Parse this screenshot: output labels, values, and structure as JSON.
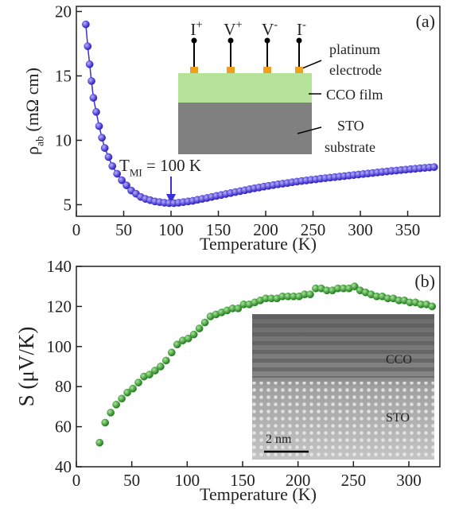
{
  "chart_data": [
    {
      "type": "line",
      "panel_label": "(a)",
      "x_label": "Temperature (K)",
      "y_label": {
        "text": "ρ",
        "sub": "ab",
        "tail": " (mΩ cm)"
      },
      "annotation": {
        "text": "T",
        "sub": "MI",
        "tail": " = 100 K"
      },
      "color": "#3b2fd6",
      "x": [
        10,
        12,
        14,
        16,
        18,
        21,
        24,
        27,
        30,
        34,
        38,
        43,
        48,
        53,
        58,
        63,
        68,
        73,
        78,
        83,
        88,
        93,
        98,
        103,
        108,
        113,
        118,
        123,
        128,
        133,
        138,
        143,
        148,
        153,
        158,
        163,
        168,
        173,
        178,
        183,
        188,
        193,
        198,
        203,
        208,
        213,
        218,
        223,
        228,
        233,
        238,
        243,
        248,
        253,
        258,
        263,
        268,
        273,
        278,
        283,
        288,
        293,
        298,
        303,
        308,
        313,
        318,
        323,
        328,
        333,
        338,
        343,
        348,
        353,
        358,
        363,
        368,
        373,
        378
      ],
      "values": [
        19.0,
        17.3,
        15.9,
        14.6,
        13.3,
        12.2,
        11.1,
        10.2,
        9.4,
        8.7,
        8.0,
        7.4,
        6.9,
        6.5,
        6.1,
        5.85,
        5.6,
        5.45,
        5.35,
        5.25,
        5.2,
        5.15,
        5.12,
        5.12,
        5.15,
        5.2,
        5.25,
        5.3,
        5.38,
        5.45,
        5.52,
        5.6,
        5.68,
        5.75,
        5.83,
        5.9,
        5.98,
        6.05,
        6.12,
        6.2,
        6.27,
        6.33,
        6.4,
        6.46,
        6.52,
        6.58,
        6.63,
        6.68,
        6.74,
        6.79,
        6.84,
        6.88,
        6.93,
        6.97,
        7.02,
        7.06,
        7.1,
        7.14,
        7.18,
        7.22,
        7.26,
        7.3,
        7.34,
        7.38,
        7.42,
        7.46,
        7.5,
        7.54,
        7.58,
        7.62,
        7.65,
        7.69,
        7.72,
        7.76,
        7.79,
        7.83,
        7.86,
        7.89,
        7.92
      ],
      "xlim": [
        0,
        384
      ],
      "ylim": [
        4.1,
        20.4
      ],
      "xticks": [
        0,
        50,
        100,
        150,
        200,
        250,
        300,
        350
      ],
      "yticks": [
        5,
        10,
        15,
        20
      ],
      "inset": {
        "terminals": [
          {
            "text": "I",
            "sup": "+"
          },
          {
            "text": "V",
            "sup": "+"
          },
          {
            "text": "V",
            "sup": "-"
          },
          {
            "text": "I",
            "sup": "-"
          }
        ],
        "electrode_label": [
          "platinum",
          "electrode"
        ],
        "film_label": "CCO film",
        "substrate_label": [
          "STO",
          "substrate"
        ]
      }
    },
    {
      "type": "scatter",
      "panel_label": "(b)",
      "x_label": "Temperature (K)",
      "y_label": "S (μV/K)",
      "color": "#2f9a2a",
      "x": [
        21,
        26,
        31,
        36,
        41,
        46,
        51,
        56,
        61,
        66,
        71,
        76,
        81,
        86,
        91,
        96,
        101,
        106,
        111,
        116,
        121,
        126,
        131,
        136,
        141,
        146,
        151,
        156,
        161,
        166,
        171,
        176,
        181,
        186,
        191,
        196,
        201,
        206,
        211,
        216,
        221,
        226,
        231,
        236,
        241,
        246,
        251,
        256,
        261,
        266,
        271,
        276,
        281,
        286,
        291,
        296,
        301,
        306,
        311,
        316,
        321
      ],
      "values": [
        52,
        62,
        67,
        71,
        74,
        77,
        79,
        82,
        85,
        86,
        88,
        90,
        93,
        97,
        101,
        103,
        104,
        106,
        109,
        112,
        115,
        116,
        117,
        118,
        119,
        119,
        121,
        121,
        122,
        123,
        124,
        124,
        124,
        125,
        125,
        125,
        125,
        126,
        126,
        129,
        129,
        128,
        128,
        129,
        129,
        129,
        130,
        128,
        127,
        126,
        125,
        125,
        124,
        124,
        123,
        123,
        122,
        122,
        121,
        121,
        120
      ],
      "xlim": [
        0,
        328
      ],
      "ylim": [
        40,
        140
      ],
      "xticks": [
        0,
        50,
        100,
        150,
        200,
        250,
        300
      ],
      "yticks": [
        40,
        60,
        80,
        100,
        120,
        140
      ],
      "inset": {
        "top_label": "CCO",
        "bottom_label": "STO",
        "scale_label": "2 nm"
      }
    }
  ]
}
